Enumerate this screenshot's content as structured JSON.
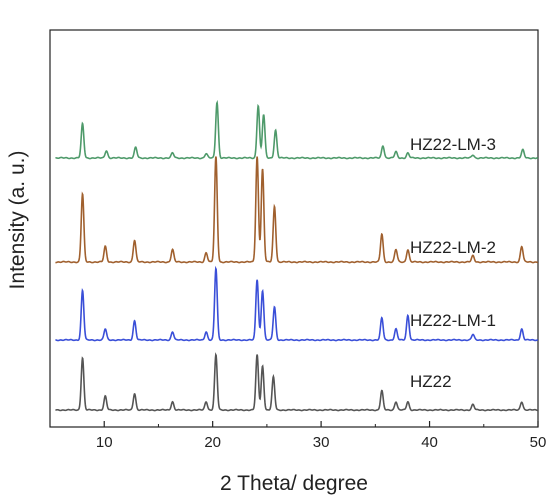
{
  "chart_data": {
    "type": "line",
    "title": "",
    "xlabel": "2 Theta/ degree",
    "ylabel": "Intensity (a. u.)",
    "xlim": [
      5,
      50
    ],
    "xticks": [
      10,
      20,
      30,
      40,
      50
    ],
    "yticks": "none",
    "grid": false,
    "legend": "labels placed beside each stacked pattern",
    "stacked_offset": true,
    "series": [
      {
        "name": "HZ22",
        "color": "#555555",
        "peaks": [
          [
            8.0,
            0.95
          ],
          [
            10.1,
            0.25
          ],
          [
            12.8,
            0.3
          ],
          [
            16.3,
            0.15
          ],
          [
            19.4,
            0.15
          ],
          [
            20.3,
            1.0
          ],
          [
            24.1,
            1.0
          ],
          [
            24.6,
            0.8
          ],
          [
            25.6,
            0.6
          ],
          [
            35.6,
            0.35
          ],
          [
            36.9,
            0.15
          ],
          [
            38.0,
            0.15
          ],
          [
            44.0,
            0.1
          ],
          [
            48.5,
            0.15
          ]
        ]
      },
      {
        "name": "HZ22-LM-1",
        "color": "#3a4fd8",
        "peaks": [
          [
            8.0,
            0.9
          ],
          [
            10.1,
            0.2
          ],
          [
            12.8,
            0.35
          ],
          [
            16.3,
            0.15
          ],
          [
            19.4,
            0.15
          ],
          [
            20.3,
            1.3
          ],
          [
            24.1,
            1.1
          ],
          [
            24.6,
            0.9
          ],
          [
            25.7,
            0.6
          ],
          [
            35.6,
            0.4
          ],
          [
            36.9,
            0.2
          ],
          [
            38.0,
            0.45
          ],
          [
            44.0,
            0.1
          ],
          [
            48.5,
            0.2
          ]
        ]
      },
      {
        "name": "HZ22-LM-2",
        "color": "#a0602e",
        "peaks": [
          [
            8.0,
            1.1
          ],
          [
            10.1,
            0.25
          ],
          [
            12.8,
            0.35
          ],
          [
            16.3,
            0.2
          ],
          [
            19.4,
            0.15
          ],
          [
            20.3,
            1.7
          ],
          [
            24.1,
            1.7
          ],
          [
            24.6,
            1.5
          ],
          [
            25.7,
            0.9
          ],
          [
            35.6,
            0.45
          ],
          [
            36.9,
            0.2
          ],
          [
            38.0,
            0.2
          ],
          [
            44.0,
            0.1
          ],
          [
            48.5,
            0.25
          ]
        ]
      },
      {
        "name": "HZ22-LM-3",
        "color": "#4e9a6a",
        "peaks": [
          [
            8.0,
            0.55
          ],
          [
            10.2,
            0.12
          ],
          [
            12.9,
            0.17
          ],
          [
            16.3,
            0.08
          ],
          [
            19.4,
            0.07
          ],
          [
            20.4,
            0.9
          ],
          [
            24.2,
            0.85
          ],
          [
            24.7,
            0.7
          ],
          [
            25.8,
            0.45
          ],
          [
            35.7,
            0.2
          ],
          [
            36.9,
            0.1
          ],
          [
            38.0,
            0.08
          ],
          [
            44.0,
            0.05
          ],
          [
            48.6,
            0.13
          ]
        ]
      }
    ]
  }
}
